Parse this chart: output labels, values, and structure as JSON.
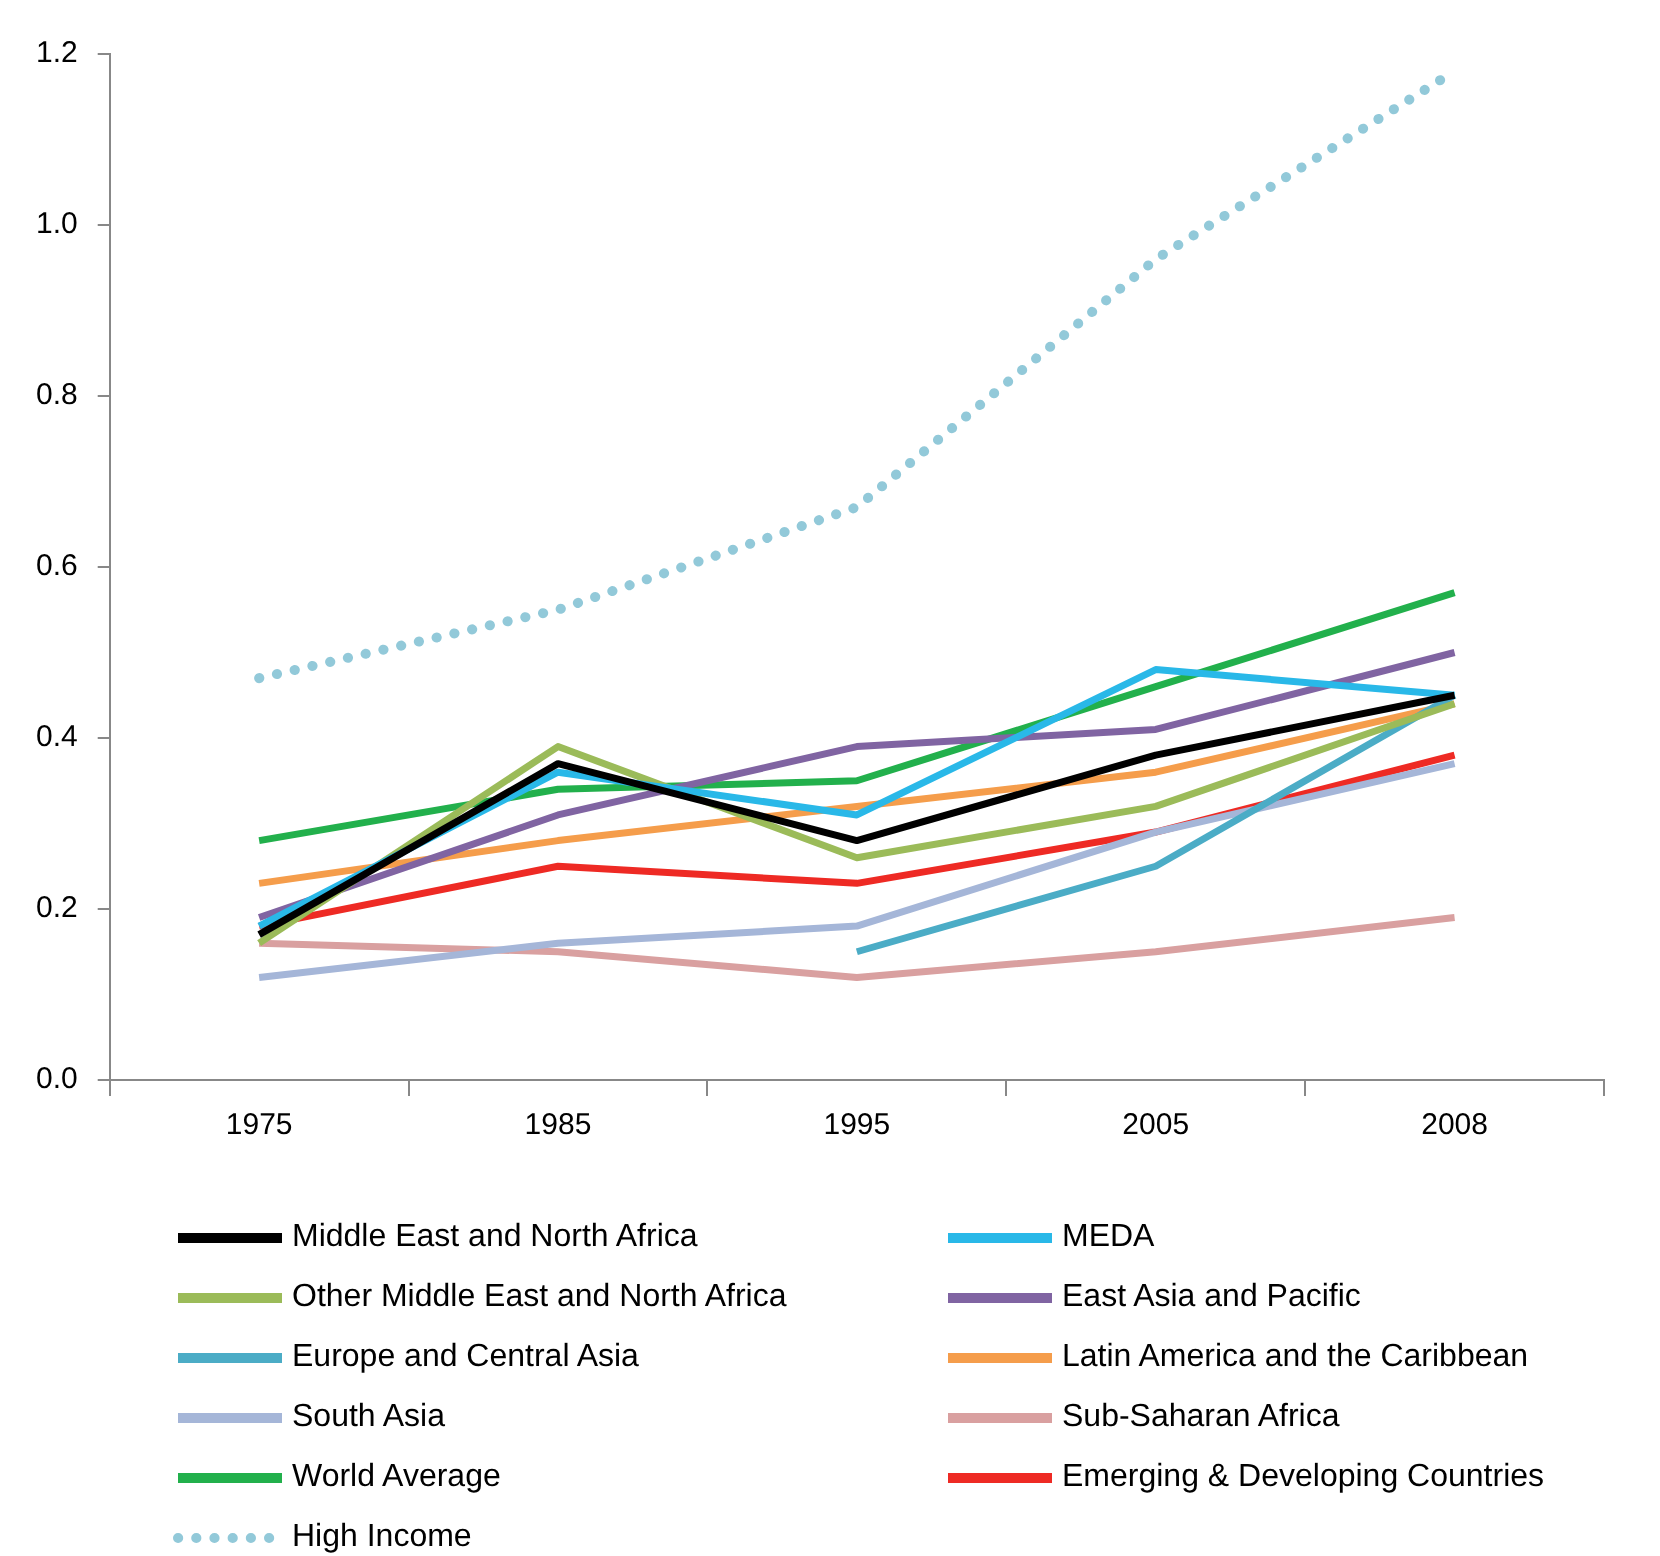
{
  "chart_data": {
    "type": "line",
    "categories": [
      "1975",
      "1985",
      "1995",
      "2005",
      "2008"
    ],
    "ylim": [
      0,
      1.2
    ],
    "yticks": [
      {
        "value": 0,
        "label": "0.0"
      },
      {
        "value": 0.2,
        "label": "0.2"
      },
      {
        "value": 0.4,
        "label": "0.4"
      },
      {
        "value": 0.6,
        "label": "0.6"
      },
      {
        "value": 0.8,
        "label": "0.8"
      },
      {
        "value": 1,
        "label": "1.0"
      },
      {
        "value": 1.2,
        "label": "1.2"
      }
    ],
    "grid": false,
    "legend": "bottom",
    "marker": "none",
    "series": [
      {
        "name": "Middle East and North Africa",
        "color": "#000000",
        "values": [
          0.17,
          0.37,
          0.28,
          0.38,
          0.45
        ]
      },
      {
        "name": "MEDA",
        "color": "#29b8e8",
        "values": [
          0.18,
          0.36,
          0.31,
          0.48,
          0.45
        ]
      },
      {
        "name": "Other Middle East and North Africa",
        "color": "#9bbb59",
        "values": [
          0.16,
          0.39,
          0.26,
          0.32,
          0.44
        ]
      },
      {
        "name": "East Asia and Pacific",
        "color": "#8064a2",
        "values": [
          0.19,
          0.31,
          0.39,
          0.41,
          0.5
        ]
      },
      {
        "name": "Europe and Central Asia",
        "color": "#4bacc6",
        "values": [
          null,
          null,
          0.15,
          0.25,
          0.45
        ]
      },
      {
        "name": "Latin America and the Caribbean",
        "color": "#f59d4b",
        "values": [
          0.23,
          0.28,
          0.32,
          0.36,
          0.44
        ]
      },
      {
        "name": "South Asia",
        "color": "#a5b6d8",
        "values": [
          0.12,
          0.16,
          0.18,
          0.29,
          0.37
        ]
      },
      {
        "name": "Sub-Saharan Africa",
        "color": "#d9a0a0",
        "values": [
          0.16,
          0.15,
          0.12,
          0.15,
          0.19
        ]
      },
      {
        "name": "World Average",
        "color": "#22b04c",
        "values": [
          0.28,
          0.34,
          0.35,
          0.46,
          0.57
        ]
      },
      {
        "name": "Emerging & Developing Countries",
        "color": "#ee2a24",
        "values": [
          0.18,
          0.25,
          0.23,
          0.29,
          0.38
        ]
      },
      {
        "name": "High Income",
        "color": "#92c9d9",
        "line_style": "dotted",
        "values": [
          0.47,
          0.55,
          0.67,
          0.96,
          1.18
        ]
      }
    ]
  }
}
